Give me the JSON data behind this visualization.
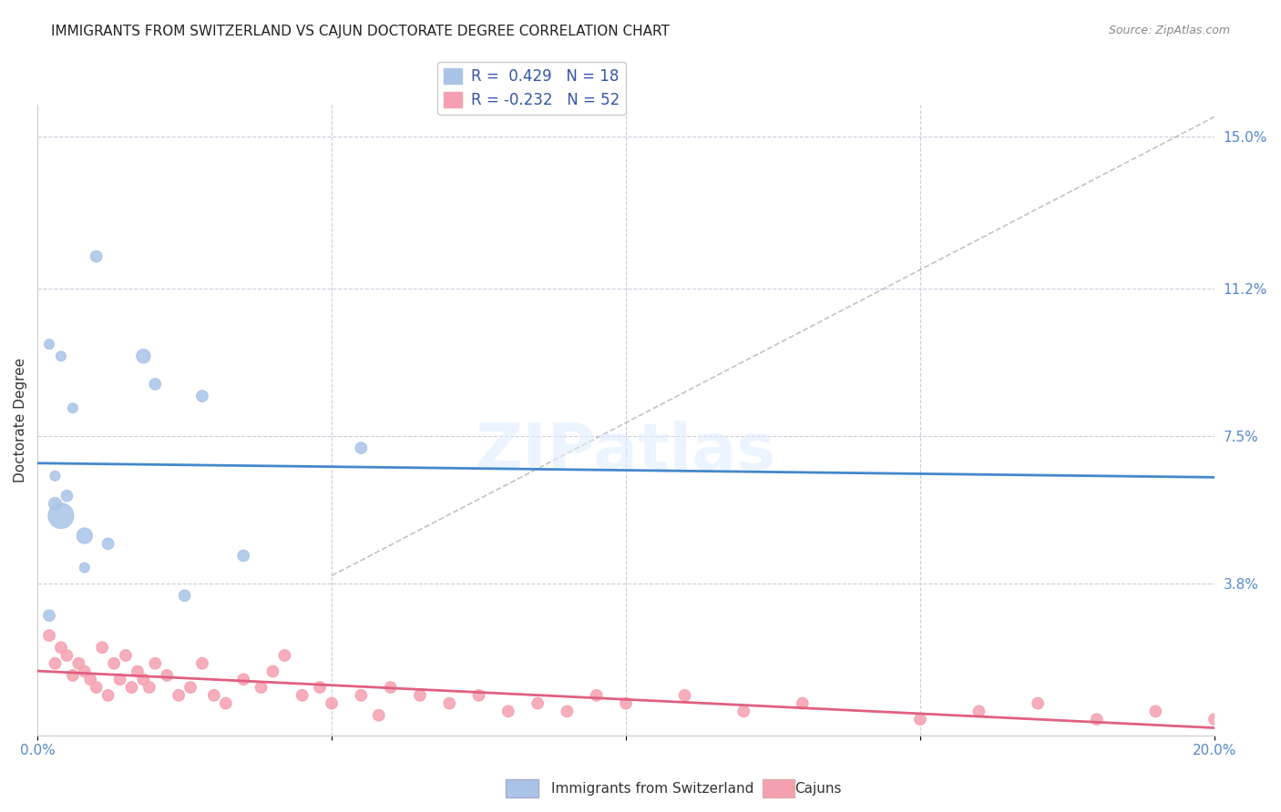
{
  "title": "IMMIGRANTS FROM SWITZERLAND VS CAJUN DOCTORATE DEGREE CORRELATION CHART",
  "source": "Source: ZipAtlas.com",
  "ylabel": "Doctorate Degree",
  "xlabel": "",
  "xlim": [
    0.0,
    0.2
  ],
  "ylim": [
    0.0,
    0.158
  ],
  "xticks": [
    0.0,
    0.05,
    0.1,
    0.15,
    0.2
  ],
  "xtick_labels": [
    "0.0%",
    "",
    "",
    "",
    "20.0%"
  ],
  "ytick_labels_right": [
    "15.0%",
    "11.2%",
    "7.5%",
    "3.8%",
    ""
  ],
  "yticks_right": [
    0.15,
    0.112,
    0.075,
    0.038,
    0.0
  ],
  "blue_color": "#aac4e8",
  "pink_color": "#f5a0b0",
  "blue_line_color": "#4488cc",
  "pink_line_color": "#e06080",
  "blue_R": 0.429,
  "blue_N": 18,
  "pink_R": -0.232,
  "pink_N": 52,
  "legend_label_blue": "Immigrants from Switzerland",
  "legend_label_pink": "Cajuns",
  "watermark": "ZIPatlas",
  "blue_scatter_x": [
    0.008,
    0.012,
    0.008,
    0.005,
    0.003,
    0.003,
    0.004,
    0.006,
    0.004,
    0.002,
    0.002,
    0.02,
    0.018,
    0.028,
    0.035,
    0.055,
    0.025,
    0.01
  ],
  "blue_scatter_y": [
    0.05,
    0.048,
    0.042,
    0.06,
    0.065,
    0.058,
    0.055,
    0.082,
    0.095,
    0.098,
    0.03,
    0.088,
    0.095,
    0.085,
    0.045,
    0.072,
    0.035,
    0.12
  ],
  "blue_scatter_sizes": [
    150,
    80,
    60,
    80,
    60,
    100,
    400,
    60,
    60,
    60,
    80,
    80,
    120,
    80,
    80,
    80,
    80,
    80
  ],
  "pink_scatter_x": [
    0.002,
    0.003,
    0.004,
    0.005,
    0.006,
    0.007,
    0.008,
    0.009,
    0.01,
    0.011,
    0.012,
    0.013,
    0.014,
    0.015,
    0.016,
    0.017,
    0.018,
    0.019,
    0.02,
    0.022,
    0.024,
    0.026,
    0.028,
    0.03,
    0.032,
    0.035,
    0.038,
    0.04,
    0.042,
    0.045,
    0.048,
    0.05,
    0.055,
    0.058,
    0.06,
    0.065,
    0.07,
    0.075,
    0.08,
    0.085,
    0.09,
    0.095,
    0.1,
    0.11,
    0.12,
    0.13,
    0.15,
    0.16,
    0.17,
    0.18,
    0.19,
    0.2
  ],
  "pink_scatter_y": [
    0.025,
    0.018,
    0.022,
    0.02,
    0.015,
    0.018,
    0.016,
    0.014,
    0.012,
    0.022,
    0.01,
    0.018,
    0.014,
    0.02,
    0.012,
    0.016,
    0.014,
    0.012,
    0.018,
    0.015,
    0.01,
    0.012,
    0.018,
    0.01,
    0.008,
    0.014,
    0.012,
    0.016,
    0.02,
    0.01,
    0.012,
    0.008,
    0.01,
    0.005,
    0.012,
    0.01,
    0.008,
    0.01,
    0.006,
    0.008,
    0.006,
    0.01,
    0.008,
    0.01,
    0.006,
    0.008,
    0.004,
    0.006,
    0.008,
    0.004,
    0.006,
    0.004
  ],
  "pink_scatter_sizes": [
    80,
    80,
    80,
    80,
    80,
    80,
    80,
    80,
    80,
    80,
    80,
    80,
    80,
    80,
    80,
    80,
    80,
    80,
    80,
    80,
    80,
    80,
    80,
    80,
    80,
    80,
    80,
    80,
    80,
    80,
    80,
    80,
    80,
    80,
    80,
    80,
    80,
    80,
    80,
    80,
    80,
    80,
    80,
    80,
    80,
    80,
    80,
    80,
    80,
    80,
    80,
    80
  ]
}
